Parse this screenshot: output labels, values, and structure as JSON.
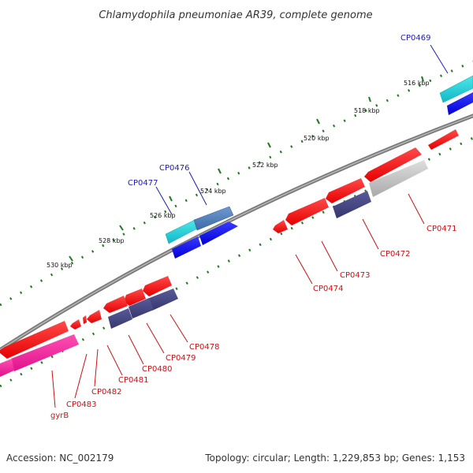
{
  "title": "Chlamydophila pneumoniae AR39, complete genome",
  "footer": {
    "accession": "Accession: NC_002179",
    "summary": "Topology: circular; Length: 1,229,853 bp; Genes: 1,153"
  },
  "colors": {
    "backbone": "#808080",
    "tick": "#1f7a1f",
    "label_forward": "#1c1cb8",
    "label_reverse": "#d01010",
    "leader_forward": "#1c1cb8",
    "leader_reverse": "#d01010"
  },
  "tick_labels": [
    "516 kbp",
    "518 kbp",
    "520 kbp",
    "522 kbp",
    "524 kbp",
    "526 kbp",
    "528 kbp",
    "530 kbp"
  ],
  "gene_labels": {
    "forward": [
      "CP0469",
      "CP0476",
      "CP0477"
    ],
    "reverse": [
      "CP0471",
      "CP0472",
      "CP0473",
      "CP0474",
      "CP0478",
      "CP0479",
      "CP0480",
      "CP0481",
      "CP0482",
      "CP0483",
      "gyrB"
    ]
  }
}
